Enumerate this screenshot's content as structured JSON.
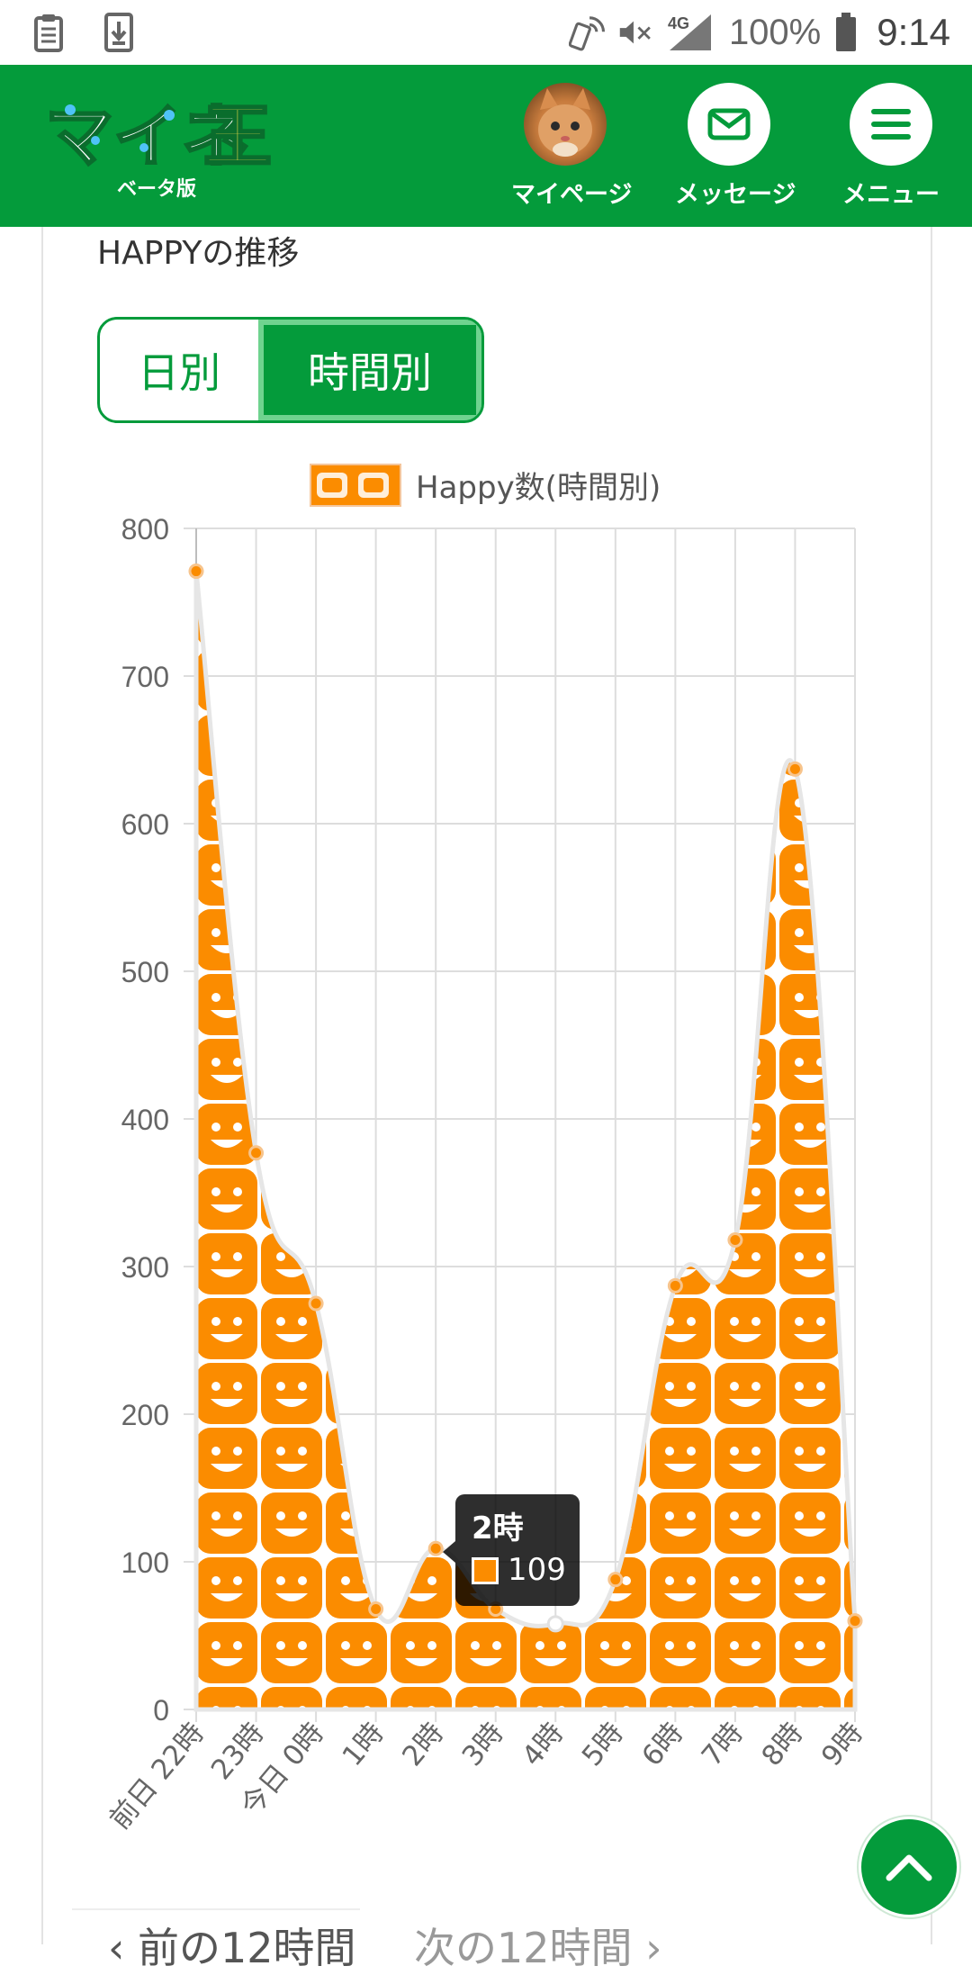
{
  "status_bar": {
    "battery_pct": "100%",
    "time": "9:14",
    "network": "4G",
    "icons": [
      "clipboard-icon",
      "download-icon",
      "nfc-phone-icon",
      "mute-icon",
      "signal-icon",
      "battery-icon"
    ]
  },
  "header": {
    "logo": "マイネ王",
    "logo_sub": "ベータ版",
    "mypage_label": "マイページ",
    "message_label": "メッセージ",
    "menu_label": "メニュー",
    "brand_color": "#049b3b"
  },
  "section": {
    "title": "HAPPYの推移"
  },
  "toggle": {
    "day_label": "日別",
    "hour_label": "時間別",
    "selected": "時間別"
  },
  "chart_data": {
    "type": "area",
    "series": [
      {
        "name": "Happy数(時間別)",
        "values": [
          771,
          377,
          275,
          68,
          109,
          68,
          58,
          88,
          287,
          318,
          637,
          60
        ]
      }
    ],
    "categories": [
      "前日 22時",
      "23時",
      "今日 0時",
      "1時",
      "2時",
      "3時",
      "4時",
      "5時",
      "6時",
      "7時",
      "8時",
      "9時"
    ],
    "yticks": [
      "0",
      "100",
      "200",
      "300",
      "400",
      "500",
      "600",
      "700",
      "800"
    ],
    "ylim": [
      0,
      800
    ],
    "grid": true,
    "legend_position": "top",
    "fill_color": "#fb8c00"
  },
  "tooltip": {
    "title": "2時",
    "value": "109"
  },
  "pager": {
    "prev_label": "‹ 前の12時間",
    "next_label": "次の12時間 ›"
  }
}
